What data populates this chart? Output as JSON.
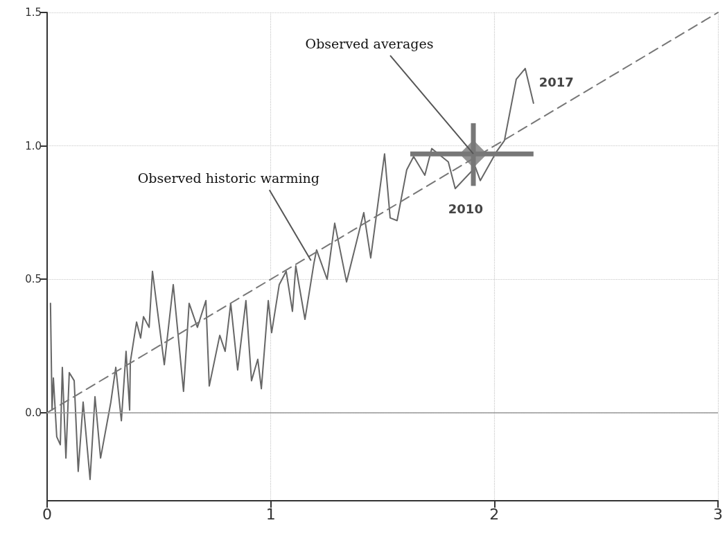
{
  "chart_data": {
    "type": "line",
    "xlim": [
      0,
      3
    ],
    "xticks": [
      0,
      1,
      2,
      3
    ],
    "ylim": [
      -0.33,
      1.5
    ],
    "yticks": [
      {
        "value": 0,
        "label": "0.0"
      },
      {
        "value": 0.5,
        "label": "0.5"
      },
      {
        "value": 1,
        "label": "1.0"
      },
      {
        "value": 1.5,
        "label": "1.5"
      }
    ],
    "grid": true,
    "series": [
      {
        "color": "#666666",
        "line_style": "solid",
        "marker": "none",
        "x": [
          0.015,
          0.022,
          0.028,
          0.043,
          0.059,
          0.068,
          0.084,
          0.099,
          0.121,
          0.139,
          0.161,
          0.192,
          0.214,
          0.239,
          0.285,
          0.307,
          0.332,
          0.353,
          0.369,
          0.372,
          0.4,
          0.418,
          0.431,
          0.456,
          0.471,
          0.524,
          0.564,
          0.61,
          0.635,
          0.672,
          0.71,
          0.725,
          0.772,
          0.796,
          0.821,
          0.852,
          0.889,
          0.914,
          0.942,
          0.958,
          0.989,
          1.004,
          1.038,
          1.069,
          1.097,
          1.112,
          1.153,
          1.193,
          1.205,
          1.252,
          1.286,
          1.339,
          1.416,
          1.447,
          1.509,
          1.534,
          1.565,
          1.608,
          1.639,
          1.689,
          1.72,
          1.794,
          1.825,
          1.915,
          1.937,
          2.011,
          2.045,
          2.098,
          2.138,
          2.175
        ],
        "values": [
          0.41,
          0.01,
          0.13,
          -0.09,
          -0.12,
          0.17,
          -0.17,
          0.15,
          0.12,
          -0.22,
          0.04,
          -0.25,
          0.06,
          -0.17,
          0.04,
          0.17,
          -0.03,
          0.23,
          0.01,
          0.19,
          0.34,
          0.28,
          0.36,
          0.32,
          0.53,
          0.18,
          0.48,
          0.08,
          0.41,
          0.32,
          0.42,
          0.1,
          0.29,
          0.23,
          0.41,
          0.16,
          0.42,
          0.12,
          0.2,
          0.09,
          0.42,
          0.3,
          0.48,
          0.53,
          0.38,
          0.55,
          0.35,
          0.56,
          0.61,
          0.5,
          0.71,
          0.49,
          0.75,
          0.58,
          0.97,
          0.73,
          0.72,
          0.91,
          0.96,
          0.89,
          0.99,
          0.94,
          0.84,
          0.92,
          0.87,
          0.98,
          1.02,
          1.25,
          1.29,
          1.16
        ]
      },
      {
        "type": "line",
        "color": "#777777",
        "line_style": "dashed",
        "marker": "none",
        "x": [
          0,
          3
        ],
        "values": [
          0,
          1.5
        ]
      },
      {
        "type": "scatter",
        "color": "#777777",
        "marker": "diamond",
        "x": [
          1.906
        ],
        "values": [
          0.97
        ],
        "errors": [
          [
            0.85,
            1.085
          ]
        ],
        "xerrors": [
          [
            1.624,
            2.175
          ]
        ]
      }
    ],
    "ref_lines": [
      {
        "axis": "y",
        "value": 0,
        "color": "#999999",
        "line_style": "solid"
      }
    ],
    "annotations": [
      {
        "text": "Observed averages",
        "x": 1.906,
        "y": 0.97
      },
      {
        "text": "Observed historic warming",
        "x": 1.18,
        "y": 0.57
      },
      {
        "text": "2010",
        "x": 1.825,
        "y": 0.84
      },
      {
        "text": "2017",
        "x": 2.175,
        "y": 1.16
      }
    ]
  }
}
